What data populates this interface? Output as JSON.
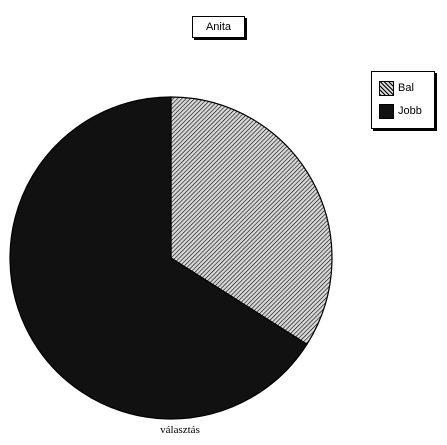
{
  "chart_data": {
    "type": "pie",
    "title": "Anita",
    "xlabel": "választás",
    "categories": [
      "Bal",
      "Jobb"
    ],
    "values": [
      34,
      66
    ],
    "legend_position": "top-right",
    "colors": {
      "Bal": "#d8d8d8",
      "Jobb": "#111111"
    }
  }
}
